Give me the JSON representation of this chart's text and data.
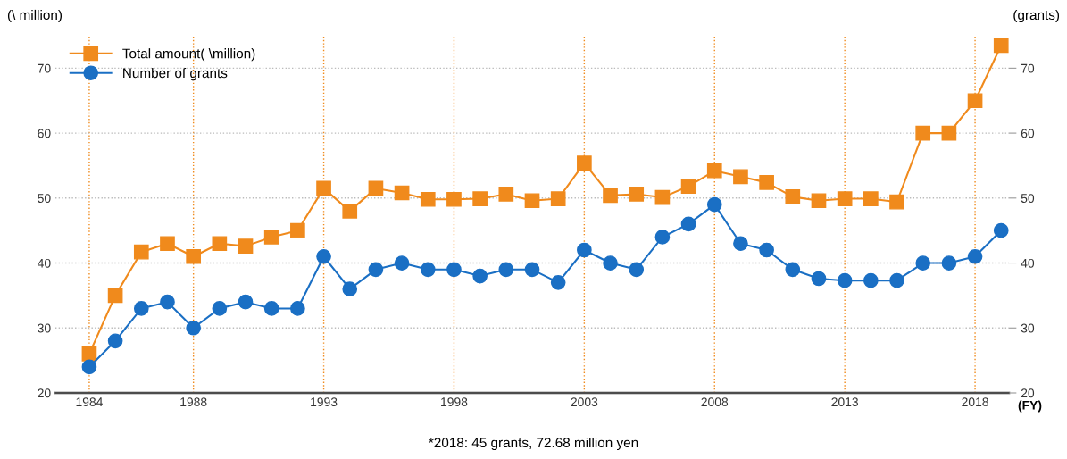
{
  "chart_data": {
    "type": "line",
    "x": [
      1984,
      1985,
      1986,
      1987,
      1988,
      1989,
      1990,
      1991,
      1992,
      1993,
      1994,
      1995,
      1996,
      1997,
      1998,
      1999,
      2000,
      2001,
      2002,
      2003,
      2004,
      2005,
      2006,
      2007,
      2008,
      2009,
      2010,
      2011,
      2012,
      2013,
      2014,
      2015,
      2016,
      2017,
      2018,
      2019
    ],
    "series": [
      {
        "name": "Total amount( \\million)",
        "color": "#f08a1c",
        "marker": "square",
        "values": [
          26,
          35,
          41.7,
          43,
          41,
          43,
          42.6,
          44,
          45,
          51.5,
          48,
          51.5,
          50.8,
          49.8,
          49.8,
          49.9,
          50.6,
          49.6,
          49.9,
          55.4,
          50.4,
          50.6,
          50.1,
          51.8,
          54.2,
          53.3,
          52.4,
          50.2,
          49.6,
          49.9,
          49.9,
          49.4,
          60,
          60,
          65,
          73.5
        ]
      },
      {
        "name": "Number of grants",
        "color": "#1a6fc4",
        "marker": "circle",
        "values": [
          24,
          28,
          33,
          34,
          30,
          33,
          34,
          33,
          33,
          41,
          36,
          39,
          40,
          39,
          39,
          38,
          39,
          39,
          37,
          42,
          40,
          39,
          44,
          46,
          49,
          43,
          42,
          39,
          37.6,
          37.3,
          37.3,
          37.3,
          40,
          40,
          41,
          45
        ]
      }
    ],
    "ylabel": "(\\ million)",
    "y2label": "(grants)",
    "xlabel": "(FY)",
    "xlim": [
      1982.7,
      2019.3
    ],
    "xticks": [
      1984,
      1988,
      1993,
      1998,
      2003,
      2008,
      2013,
      2018
    ],
    "ylim": [
      20,
      75
    ],
    "yticks": [
      20,
      30,
      40,
      50,
      60,
      70
    ],
    "y2lim": [
      20,
      75
    ],
    "y2ticks": [
      20,
      30,
      40,
      50,
      60,
      70
    ],
    "grid": true,
    "legend": "top left",
    "line_style": "solid",
    "annotations": [
      "*2018: 45 grants, 72.68 million yen"
    ]
  }
}
